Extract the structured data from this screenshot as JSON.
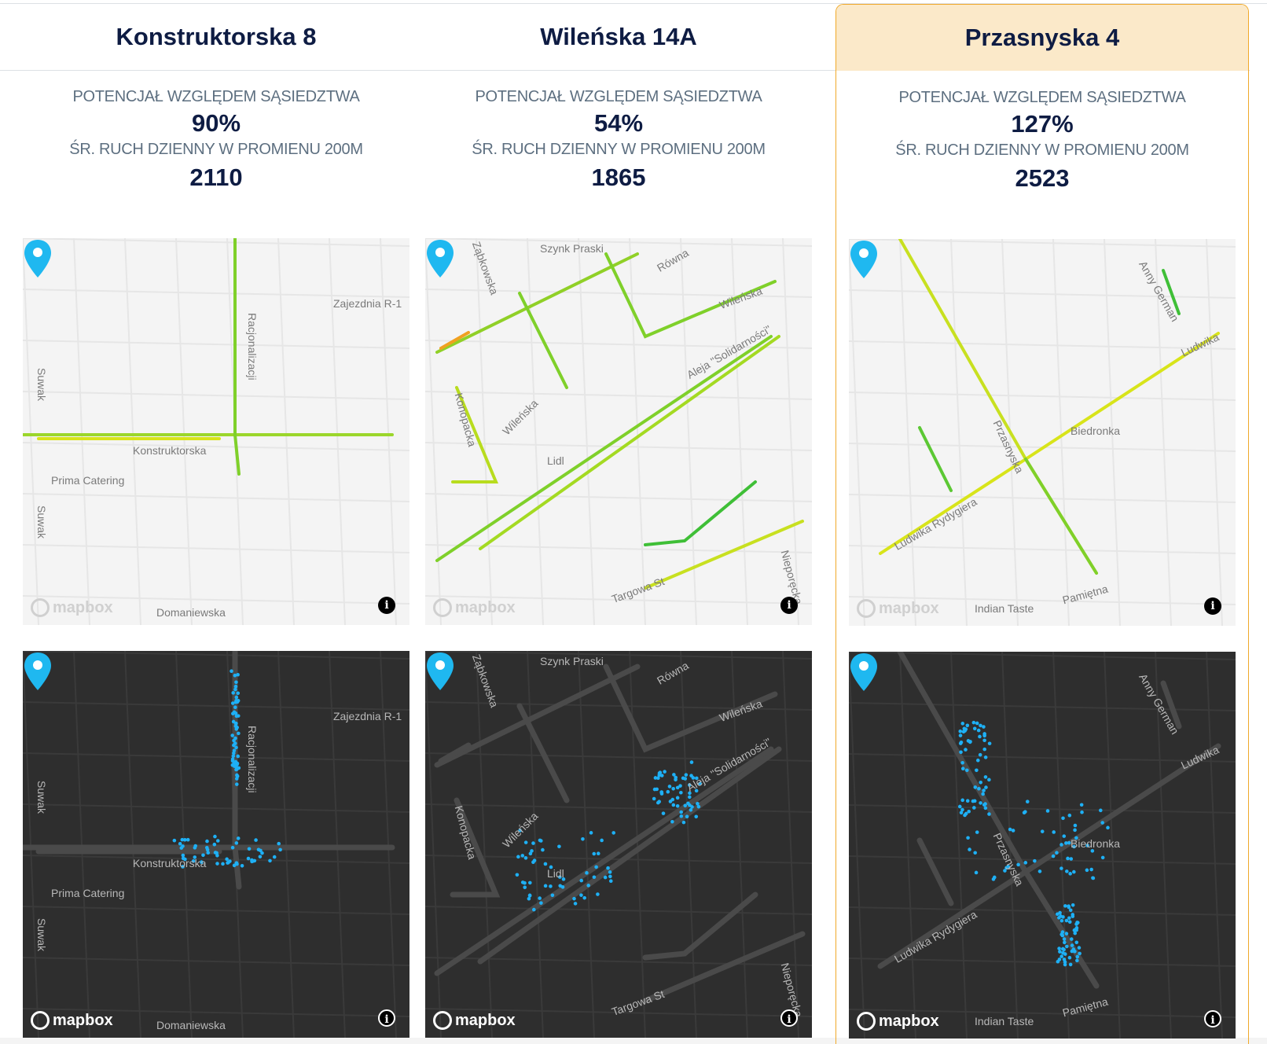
{
  "labels": {
    "potential": "POTENCJAŁ WZGLĘDEM SĄSIEDZTWA",
    "traffic": "ŚR. RUCH DZIENNY W PROMIENU 200M"
  },
  "map_attribution": "mapbox",
  "info_icon": "i",
  "colors": {
    "highlight_bg": "#fbe9c9",
    "highlight_border": "#f0a92a",
    "title": "#0e1c43",
    "label": "#5d6f80",
    "pin": "#1fb8f0",
    "dots": "#1eb0f5"
  },
  "locations": [
    {
      "name": "Konstruktorska 8",
      "potential": "90%",
      "traffic": "2110",
      "highlighted": false,
      "map_labels": [
        "Racjonalizacji",
        "Zajezdnia R-1",
        "Suwak",
        "Suwak",
        "Konstruktorska",
        "Prima Catering",
        "Domaniewska"
      ]
    },
    {
      "name": "Wileńska 14A",
      "potential": "54%",
      "traffic": "1865",
      "highlighted": false,
      "map_labels": [
        "Szynk Praski",
        "Równa",
        "Wileńska",
        "Aleja \"Solidarności\"",
        "Konopacka",
        "Wileńska",
        "Lidl",
        "Targowa St",
        "Nieporęcka",
        "Ząbkowska"
      ]
    },
    {
      "name": "Przasnyska 4",
      "potential": "127%",
      "traffic": "2523",
      "highlighted": true,
      "map_labels": [
        "Anny German",
        "Ludwika",
        "Biedronka",
        "Przasnyska",
        "Ludwika Rydygiera",
        "Indian Taste",
        "Pamiętna"
      ]
    }
  ]
}
